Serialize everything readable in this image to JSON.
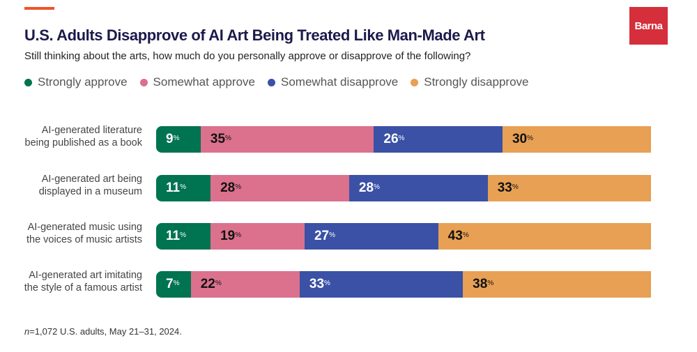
{
  "brand": {
    "logo_text": "Barna",
    "accent_color": "#F0532A",
    "logo_color": "#D42F3A"
  },
  "chart_data": {
    "type": "bar",
    "orientation": "horizontal-stacked-100",
    "title": "U.S. Adults Disapprove of AI Art Being Treated Like Man-Made Art",
    "subtitle": "Still thinking about the arts, how much do you personally approve or disapprove of the following?",
    "categories": [
      "AI-generated literature being published as a book",
      "AI-generated art being displayed in a museum",
      "AI-generated music using the voices of music artists",
      "AI-generated art imitating the style of a famous artist"
    ],
    "series": [
      {
        "name": "Strongly approve",
        "color": "#007350",
        "text_color": "#ffffff",
        "values": [
          9,
          11,
          11,
          7
        ]
      },
      {
        "name": "Somewhat approve",
        "color": "#DB718D",
        "text_color": "#111111",
        "values": [
          35,
          28,
          19,
          22
        ]
      },
      {
        "name": "Somewhat disapprove",
        "color": "#3A51A5",
        "text_color": "#ffffff",
        "values": [
          26,
          28,
          27,
          33
        ]
      },
      {
        "name": "Strongly disapprove",
        "color": "#E8A055",
        "text_color": "#111111",
        "values": [
          30,
          33,
          43,
          38
        ]
      }
    ],
    "unit": "%",
    "legend_position": "top-left",
    "xlim": [
      0,
      100
    ]
  },
  "footnote": {
    "n_label": "n",
    "text": "=1,072 U.S. adults, May 21–31, 2024."
  }
}
